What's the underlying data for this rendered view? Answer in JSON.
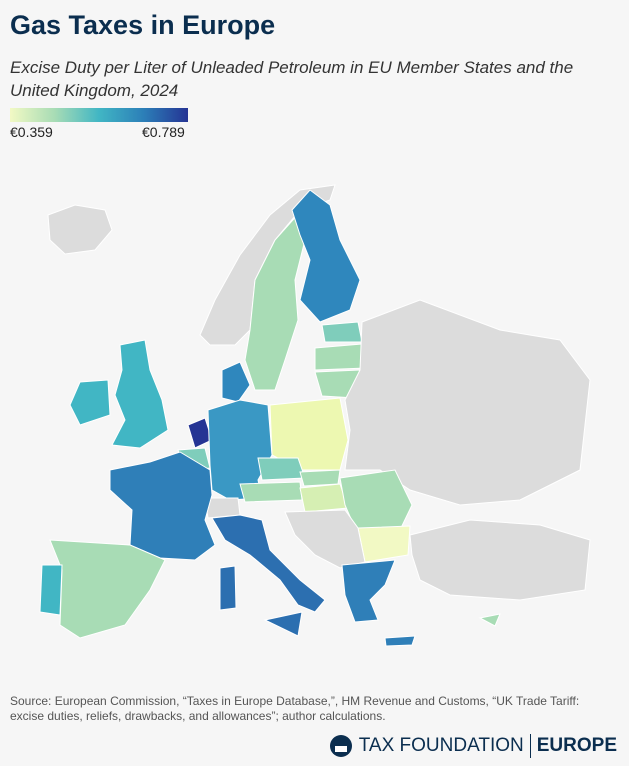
{
  "header": {
    "title": "Gas Taxes in Europe",
    "subtitle": "Excise Duty per Liter of Unleaded Petroleum in EU Member States and the United Kingdom, 2024"
  },
  "legend": {
    "min_label": "€0.359",
    "max_label": "€0.789"
  },
  "footer": {
    "source": "Source: European Commission, “Taxes in Europe Database,”, HM Revenue and Customs, “UK Trade Tariff: excise duties, reliefs, drawbacks, and allowances”; author calculations.",
    "logo_name": "TAX FOUNDATION",
    "logo_region": "EUROPE"
  }
}
